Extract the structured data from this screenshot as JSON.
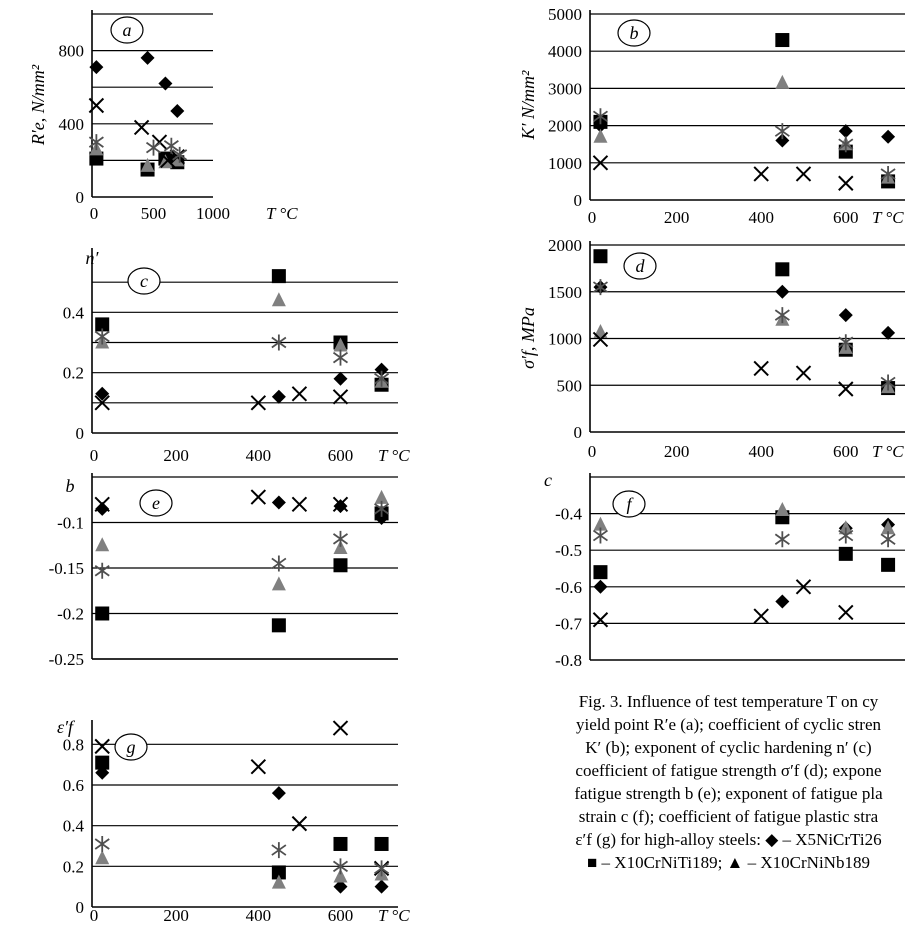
{
  "figure": {
    "caption_lines": [
      "Fig. 3. Influence of test temperature T on cy",
      "yield point R′e (a); coefficient of cyclic stren",
      "K′ (b); exponent of cyclic hardening n′ (c)",
      "coefficient of fatigue strength σ′f (d); expone",
      "fatigue strength b (e); exponent of fatigue pla",
      "strain c (f); coefficient of fatigue plastic stra",
      "ε′f (g) for high-alloy steels: ◆ – X5NiCrTi26",
      "■ – X10CrNiTi189; ▲ – X10CrNiNb189"
    ],
    "series_colors": {
      "X5NiCrTi26": "#000000",
      "X10CrNiTi189": "#000000",
      "X10CrNiNb189": "#808080",
      "cross": "#000000",
      "asterisk": "#505050"
    }
  },
  "chart_data": [
    {
      "panel": "a",
      "type": "scatter",
      "ylabel": "R′e, N/mm²",
      "xlabel": "T °C",
      "xlim": [
        0,
        1000
      ],
      "ylim": [
        0,
        1000
      ],
      "x_ticks": [
        "0",
        "500",
        "1000"
      ],
      "y_ticks": [
        "0",
        "400",
        "800"
      ],
      "gridlines": [
        200,
        400,
        600,
        800,
        1000
      ],
      "series": [
        {
          "name": "X5NiCrTi26",
          "marker": "diamond",
          "points": [
            [
              20,
              710
            ],
            [
              450,
              760
            ],
            [
              600,
              620
            ],
            [
              700,
              470
            ]
          ]
        },
        {
          "name": "X10CrNiTi189",
          "marker": "square",
          "points": [
            [
              20,
              210
            ],
            [
              450,
              150
            ],
            [
              600,
              210
            ],
            [
              700,
              190
            ]
          ]
        },
        {
          "name": "X10CrNiNb189",
          "marker": "triangle",
          "points": [
            [
              20,
              260
            ],
            [
              450,
              170
            ],
            [
              600,
              190
            ],
            [
              700,
              200
            ]
          ]
        },
        {
          "marker": "cross",
          "points": [
            [
              20,
              500
            ],
            [
              400,
              380
            ],
            [
              550,
              300
            ],
            [
              620,
              200
            ],
            [
              700,
              220
            ]
          ]
        },
        {
          "marker": "asterisk",
          "points": [
            [
              20,
              300
            ],
            [
              500,
              270
            ],
            [
              650,
              280
            ],
            [
              720,
              230
            ]
          ]
        }
      ]
    },
    {
      "panel": "b",
      "type": "scatter",
      "ylabel": "K′ N/mm²",
      "xlabel": "T °C",
      "xlim": [
        0,
        740
      ],
      "ylim": [
        0,
        5000
      ],
      "x_ticks": [
        "0",
        "200",
        "400",
        "600"
      ],
      "y_ticks": [
        "0",
        "1000",
        "2000",
        "3000",
        "4000",
        "5000"
      ],
      "gridlines": [
        1000,
        2000,
        3000,
        4000,
        5000
      ],
      "series": [
        {
          "name": "X5NiCrTi26",
          "marker": "diamond",
          "points": [
            [
              20,
              2000
            ],
            [
              450,
              1600
            ],
            [
              600,
              1850
            ],
            [
              700,
              1700
            ]
          ]
        },
        {
          "name": "X10CrNiTi189",
          "marker": "square",
          "points": [
            [
              20,
              2100
            ],
            [
              450,
              4300
            ],
            [
              600,
              1300
            ],
            [
              700,
              500
            ]
          ]
        },
        {
          "name": "X10CrNiNb189",
          "marker": "triangle",
          "points": [
            [
              20,
              1700
            ],
            [
              450,
              3150
            ],
            [
              600,
              1500
            ],
            [
              700,
              600
            ]
          ]
        },
        {
          "marker": "cross",
          "points": [
            [
              20,
              1000
            ],
            [
              400,
              700
            ],
            [
              500,
              700
            ],
            [
              600,
              450
            ]
          ]
        },
        {
          "marker": "asterisk",
          "points": [
            [
              20,
              2250
            ],
            [
              450,
              1850
            ],
            [
              600,
              1500
            ],
            [
              700,
              700
            ]
          ]
        }
      ]
    },
    {
      "panel": "c",
      "type": "scatter",
      "ylabel": "n′",
      "xlabel": "T °C",
      "xlim": [
        0,
        740
      ],
      "ylim": [
        0,
        0.6
      ],
      "x_ticks": [
        "0",
        "200",
        "400",
        "600"
      ],
      "y_ticks": [
        "0",
        "0.2",
        "0.4"
      ],
      "gridlines": [
        0.1,
        0.2,
        0.3,
        0.4,
        0.5
      ],
      "series": [
        {
          "name": "X5NiCrTi26",
          "marker": "diamond",
          "points": [
            [
              20,
              0.13
            ],
            [
              450,
              0.12
            ],
            [
              600,
              0.18
            ],
            [
              700,
              0.21
            ]
          ]
        },
        {
          "name": "X10CrNiTi189",
          "marker": "square",
          "points": [
            [
              20,
              0.36
            ],
            [
              450,
              0.52
            ],
            [
              600,
              0.3
            ],
            [
              700,
              0.16
            ]
          ]
        },
        {
          "name": "X10CrNiNb189",
          "marker": "triangle",
          "points": [
            [
              20,
              0.3
            ],
            [
              450,
              0.44
            ],
            [
              600,
              0.29
            ],
            [
              700,
              0.17
            ]
          ]
        },
        {
          "marker": "cross",
          "points": [
            [
              20,
              0.1
            ],
            [
              400,
              0.1
            ],
            [
              500,
              0.13
            ],
            [
              600,
              0.12
            ]
          ]
        },
        {
          "marker": "asterisk",
          "points": [
            [
              20,
              0.32
            ],
            [
              450,
              0.3
            ],
            [
              600,
              0.25
            ],
            [
              700,
              0.18
            ]
          ]
        }
      ]
    },
    {
      "panel": "d",
      "type": "scatter",
      "ylabel": "σ′f, MPa",
      "xlabel": "T °C",
      "xlim": [
        0,
        740
      ],
      "ylim": [
        0,
        2000
      ],
      "x_ticks": [
        "0",
        "200",
        "400",
        "600"
      ],
      "y_ticks": [
        "0",
        "500",
        "1000",
        "1500",
        "2000"
      ],
      "gridlines": [
        500,
        1000,
        1500,
        2000
      ],
      "series": [
        {
          "name": "X5NiCrTi26",
          "marker": "diamond",
          "points": [
            [
              20,
              1550
            ],
            [
              450,
              1500
            ],
            [
              600,
              1250
            ],
            [
              700,
              1060
            ]
          ]
        },
        {
          "name": "X10CrNiTi189",
          "marker": "square",
          "points": [
            [
              20,
              1880
            ],
            [
              450,
              1740
            ],
            [
              600,
              880
            ],
            [
              700,
              470
            ]
          ]
        },
        {
          "name": "X10CrNiNb189",
          "marker": "triangle",
          "points": [
            [
              20,
              1070
            ],
            [
              450,
              1200
            ],
            [
              600,
              900
            ],
            [
              700,
              480
            ]
          ]
        },
        {
          "marker": "cross",
          "points": [
            [
              20,
              990
            ],
            [
              400,
              680
            ],
            [
              500,
              630
            ],
            [
              600,
              460
            ]
          ]
        },
        {
          "marker": "asterisk",
          "points": [
            [
              20,
              1550
            ],
            [
              450,
              1250
            ],
            [
              600,
              960
            ],
            [
              700,
              530
            ]
          ]
        }
      ]
    },
    {
      "panel": "e",
      "type": "scatter",
      "ylabel": "b",
      "xlabel": "",
      "xlim": [
        0,
        740
      ],
      "ylim": [
        -0.25,
        -0.05
      ],
      "x_ticks": [],
      "y_ticks": [
        "-0.1",
        "-0.15",
        "-0.2",
        "-0.25"
      ],
      "gridlines": [
        -0.05,
        -0.1,
        -0.15,
        -0.2,
        -0.25
      ],
      "series": [
        {
          "name": "X5NiCrTi26",
          "marker": "diamond",
          "points": [
            [
              20,
              -0.085
            ],
            [
              450,
              -0.078
            ],
            [
              600,
              -0.082
            ],
            [
              700,
              -0.095
            ]
          ]
        },
        {
          "name": "X10CrNiTi189",
          "marker": "square",
          "points": [
            [
              20,
              -0.2
            ],
            [
              450,
              -0.213
            ],
            [
              600,
              -0.147
            ],
            [
              700,
              -0.09
            ]
          ]
        },
        {
          "name": "X10CrNiNb189",
          "marker": "triangle",
          "points": [
            [
              20,
              -0.125
            ],
            [
              450,
              -0.168
            ],
            [
              600,
              -0.128
            ],
            [
              700,
              -0.073
            ]
          ]
        },
        {
          "marker": "cross",
          "points": [
            [
              20,
              -0.08
            ],
            [
              400,
              -0.072
            ],
            [
              500,
              -0.08
            ],
            [
              600,
              -0.08
            ]
          ]
        },
        {
          "marker": "asterisk",
          "points": [
            [
              20,
              -0.153
            ],
            [
              450,
              -0.145
            ],
            [
              600,
              -0.118
            ],
            [
              700,
              -0.085
            ]
          ]
        }
      ]
    },
    {
      "panel": "f",
      "type": "scatter",
      "ylabel": "c",
      "xlabel": "",
      "xlim": [
        0,
        740
      ],
      "ylim": [
        -0.8,
        -0.3
      ],
      "x_ticks": [],
      "y_ticks": [
        "-0.4",
        "-0.5",
        "-0.6",
        "-0.7",
        "-0.8"
      ],
      "gridlines": [
        -0.3,
        -0.4,
        -0.5,
        -0.6,
        -0.7
      ],
      "series": [
        {
          "name": "X5NiCrTi26",
          "marker": "diamond",
          "points": [
            [
              20,
              -0.6
            ],
            [
              450,
              -0.64
            ],
            [
              600,
              -0.44
            ],
            [
              700,
              -0.43
            ]
          ]
        },
        {
          "name": "X10CrNiTi189",
          "marker": "square",
          "points": [
            [
              20,
              -0.56
            ],
            [
              450,
              -0.41
            ],
            [
              600,
              -0.51
            ],
            [
              700,
              -0.54
            ]
          ]
        },
        {
          "name": "X10CrNiNb189",
          "marker": "triangle",
          "points": [
            [
              20,
              -0.43
            ],
            [
              450,
              -0.39
            ],
            [
              600,
              -0.44
            ],
            [
              700,
              -0.44
            ]
          ]
        },
        {
          "marker": "cross",
          "points": [
            [
              20,
              -0.69
            ],
            [
              400,
              -0.68
            ],
            [
              500,
              -0.6
            ],
            [
              600,
              -0.67
            ]
          ]
        },
        {
          "marker": "asterisk",
          "points": [
            [
              20,
              -0.46
            ],
            [
              450,
              -0.47
            ],
            [
              600,
              -0.46
            ],
            [
              700,
              -0.47
            ]
          ]
        }
      ]
    },
    {
      "panel": "g",
      "type": "scatter",
      "ylabel": "ε′f",
      "xlabel": "T °C",
      "xlim": [
        0,
        740
      ],
      "ylim": [
        0,
        0.9
      ],
      "x_ticks": [
        "0",
        "200",
        "400",
        "600"
      ],
      "y_ticks": [
        "0",
        "0.2",
        "0.4",
        "0.6",
        "0.8"
      ],
      "gridlines": [
        0.2,
        0.4,
        0.6,
        0.8
      ],
      "series": [
        {
          "name": "X5NiCrTi26",
          "marker": "diamond",
          "points": [
            [
              20,
              0.66
            ],
            [
              450,
              0.56
            ],
            [
              600,
              0.1
            ],
            [
              700,
              0.1
            ]
          ]
        },
        {
          "name": "X10CrNiTi189",
          "marker": "square",
          "points": [
            [
              20,
              0.71
            ],
            [
              450,
              0.17
            ],
            [
              600,
              0.31
            ],
            [
              700,
              0.31
            ]
          ]
        },
        {
          "name": "X10CrNiNb189",
          "marker": "triangle",
          "points": [
            [
              20,
              0.24
            ],
            [
              450,
              0.12
            ],
            [
              600,
              0.15
            ],
            [
              700,
              0.16
            ]
          ]
        },
        {
          "marker": "cross",
          "points": [
            [
              20,
              0.79
            ],
            [
              400,
              0.69
            ],
            [
              500,
              0.41
            ],
            [
              600,
              0.88
            ],
            [
              700,
              0.19
            ]
          ]
        },
        {
          "marker": "asterisk",
          "points": [
            [
              20,
              0.31
            ],
            [
              450,
              0.28
            ],
            [
              600,
              0.2
            ],
            [
              700,
              0.19
            ]
          ]
        }
      ]
    }
  ]
}
